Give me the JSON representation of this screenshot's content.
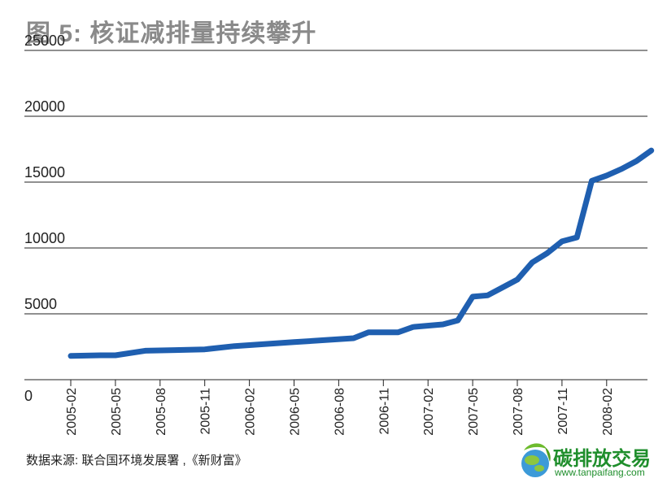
{
  "chart_data": {
    "type": "line",
    "title": "图 5: 核证减排量持续攀升",
    "xlabel": "",
    "ylabel": "",
    "ylim": [
      0,
      25000
    ],
    "yticks": [
      0,
      5000,
      10000,
      15000,
      20000,
      25000
    ],
    "ytick_labels": [
      "0",
      "5000",
      "10000",
      "15000",
      "20000",
      "25000"
    ],
    "x_tick_labels": [
      "2005-02",
      "2005-05",
      "2005-08",
      "2005-11",
      "2006-02",
      "2006-05",
      "2006-08",
      "2006-11",
      "2007-02",
      "2007-05",
      "2007-08",
      "2007-11",
      "2008-02"
    ],
    "grid": true,
    "legend": "none",
    "series": [
      {
        "color": "#1f5fb0",
        "x": [
          "2005-02",
          "2005-04",
          "2005-05",
          "2005-07",
          "2005-09",
          "2005-11",
          "2006-01",
          "2006-03",
          "2006-05",
          "2006-07",
          "2006-09",
          "2006-10",
          "2006-12",
          "2007-01",
          "2007-03",
          "2007-04",
          "2007-05",
          "2007-06",
          "2007-07",
          "2007-08",
          "2007-09",
          "2007-10",
          "2007-11",
          "2007-12",
          "2008-01",
          "2008-02",
          "2008-03",
          "2008-04",
          "2008-05"
        ],
        "values": [
          1800,
          1850,
          1850,
          2200,
          2250,
          2300,
          2550,
          2700,
          2850,
          3000,
          3150,
          3600,
          3600,
          4000,
          4200,
          4500,
          6300,
          6400,
          7000,
          7600,
          8900,
          9600,
          10500,
          10800,
          15100,
          15500,
          16000,
          16600,
          17400
        ]
      }
    ]
  },
  "source_note": "数据来源:  联合国环境发展署 ,《新财富》",
  "watermark": {
    "title": "碳排放交易",
    "url": "www.tanpaifang.com"
  }
}
